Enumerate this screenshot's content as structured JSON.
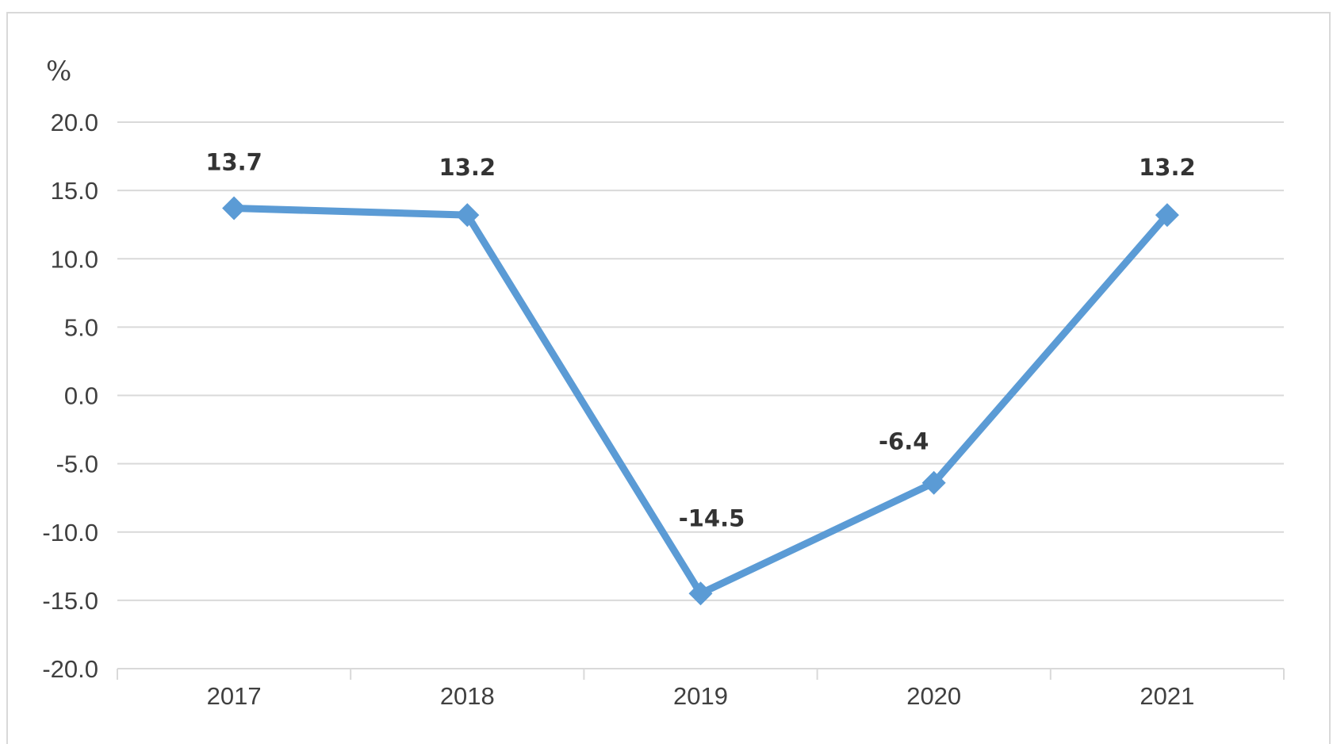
{
  "chart_data": {
    "type": "line",
    "title": "",
    "xlabel": "",
    "ylabel": "%",
    "categories": [
      "2017",
      "2018",
      "2019",
      "2020",
      "2021"
    ],
    "series": [
      {
        "values": [
          13.7,
          13.2,
          -14.5,
          -6.4,
          13.2
        ],
        "data_labels": [
          "13.7",
          "13.2",
          "-14.5",
          "-6.4",
          "13.2"
        ],
        "color": "#5b9bd5",
        "marker": "diamond"
      }
    ],
    "ylim": [
      -20.0,
      20.0
    ],
    "yticks": [
      "20.0",
      "15.0",
      "10.0",
      "5.0",
      "0.0",
      "-5.0",
      "-10.0",
      "-15.0",
      "-20.0"
    ],
    "grid": true,
    "legend": "none"
  }
}
